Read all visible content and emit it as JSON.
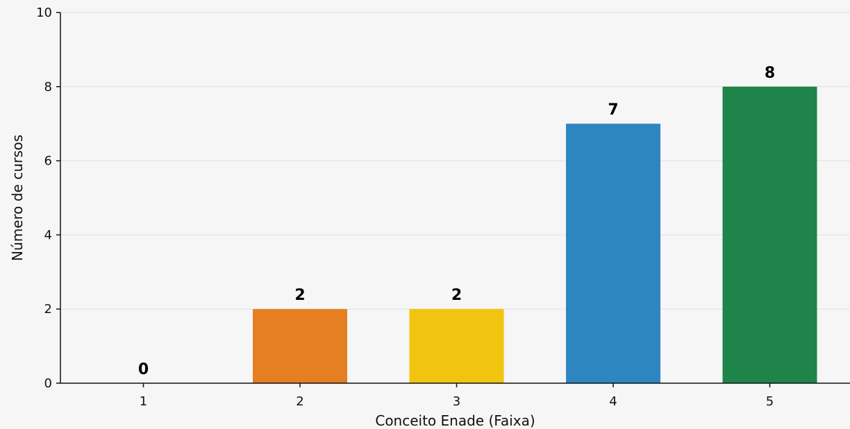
{
  "chart_data": {
    "type": "bar",
    "categories": [
      "1",
      "2",
      "3",
      "4",
      "5"
    ],
    "values": [
      0,
      2,
      2,
      7,
      8
    ],
    "colors": [
      "#e67e22",
      "#e67e22",
      "#f1c40f",
      "#2e86c1",
      "#1e8449"
    ],
    "data_labels": [
      "0",
      "2",
      "2",
      "7",
      "8"
    ],
    "xlabel": "Conceito Enade (Faixa)",
    "ylabel": "Número de cursos",
    "ylim": [
      0,
      10
    ],
    "yticks": [
      "0",
      "2",
      "4",
      "6",
      "8",
      "10"
    ],
    "grid": "horizontal",
    "background": "#f5f6f5"
  }
}
